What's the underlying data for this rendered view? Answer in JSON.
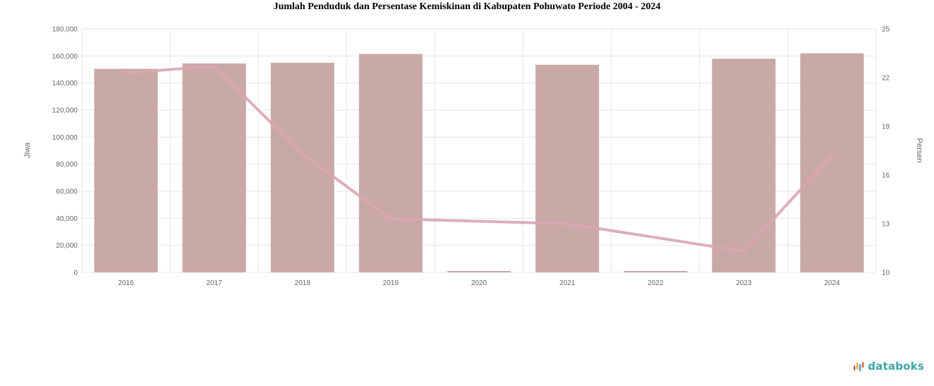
{
  "title": "Jumlah Penduduk dan Persentase Kemiskinan di Kabupaten Pohuwato Periode 2004 - 2024",
  "brand": {
    "name": "databoks",
    "icon": "databoks-logo-icon",
    "colors": [
      "#e8553a",
      "#f39c34",
      "#3aa6a6"
    ]
  },
  "colors": {
    "bar": "#c9a9a5",
    "line": "#d9a5b3",
    "grid": "#e6e6e6"
  },
  "chart_data": {
    "type": "bar",
    "title": "Jumlah Penduduk dan Persentase Kemiskinan di Kabupaten Pohuwato Periode 2004 - 2024",
    "categories": [
      "2016",
      "2017",
      "2018",
      "2019",
      "2020",
      "2021",
      "2022",
      "2023",
      "2024"
    ],
    "series": [
      {
        "name": "Jiwa",
        "type": "bar",
        "axis": "left",
        "values": [
          150500,
          154500,
          155000,
          161500,
          0,
          153500,
          0,
          158000,
          162000
        ]
      },
      {
        "name": "Persen",
        "type": "line",
        "axis": "right",
        "values": [
          22.3,
          22.7,
          17.3,
          13.3,
          null,
          13.0,
          null,
          11.3,
          17.2
        ]
      }
    ],
    "ylabel": "Jiwa",
    "ylim": [
      0,
      180000
    ],
    "yticks": [
      "0",
      "20,000",
      "40,000",
      "60,000",
      "80,000",
      "100,000",
      "120,000",
      "140,000",
      "160,000",
      "180,000"
    ],
    "y2label": "Persen",
    "y2lim": [
      10,
      25
    ],
    "y2ticks": [
      "10",
      "13",
      "16",
      "19",
      "22",
      "25"
    ],
    "grid": true,
    "legend": "none"
  }
}
